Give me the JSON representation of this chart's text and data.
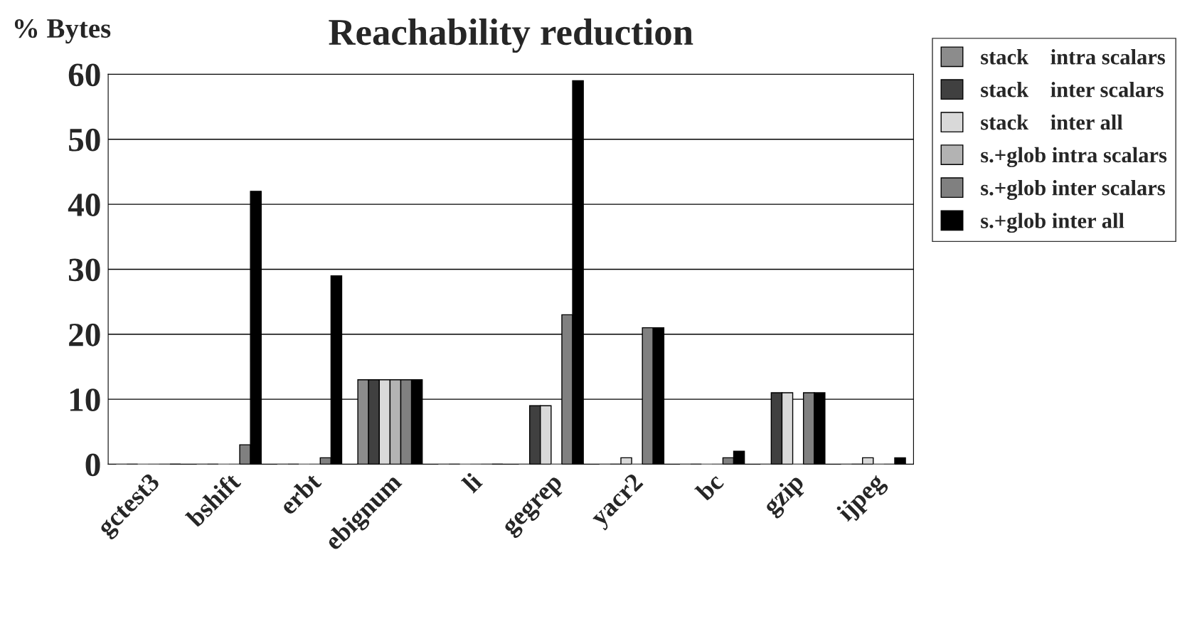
{
  "chart_data": {
    "type": "bar",
    "title": "Reachability reduction",
    "ylabel": "% Bytes",
    "categories": [
      "gctest3",
      "bshift",
      "erbt",
      "ebignum",
      "li",
      "gegrep",
      "yacr2",
      "bc",
      "gzip",
      "ijpeg"
    ],
    "series": [
      {
        "name": "stack    intra scalars",
        "color": "#8c8c8c",
        "values": [
          0,
          0,
          0,
          13,
          0,
          0,
          0,
          0,
          0,
          0
        ]
      },
      {
        "name": "stack    inter scalars",
        "color": "#404040",
        "values": [
          0,
          0,
          0,
          13,
          0,
          9,
          0,
          0,
          11,
          0
        ]
      },
      {
        "name": "stack    inter all",
        "color": "#d9d9d9",
        "values": [
          0,
          0,
          0,
          13,
          0,
          9,
          1,
          0,
          11,
          1
        ]
      },
      {
        "name": "s.+glob intra scalars",
        "color": "#b3b3b3",
        "values": [
          0,
          0,
          0,
          13,
          0,
          0,
          0,
          0,
          0,
          0
        ]
      },
      {
        "name": "s.+glob inter scalars",
        "color": "#808080",
        "values": [
          0,
          3,
          1,
          13,
          0,
          23,
          21,
          1,
          11,
          0
        ]
      },
      {
        "name": "s.+glob inter all",
        "color": "#000000",
        "values": [
          0,
          42,
          29,
          13,
          0,
          59,
          21,
          2,
          11,
          1
        ]
      }
    ],
    "ylim": [
      0,
      60
    ],
    "yticks": [
      0,
      10,
      20,
      30,
      40,
      50,
      60
    ],
    "grid": "y",
    "legend": "top right"
  }
}
